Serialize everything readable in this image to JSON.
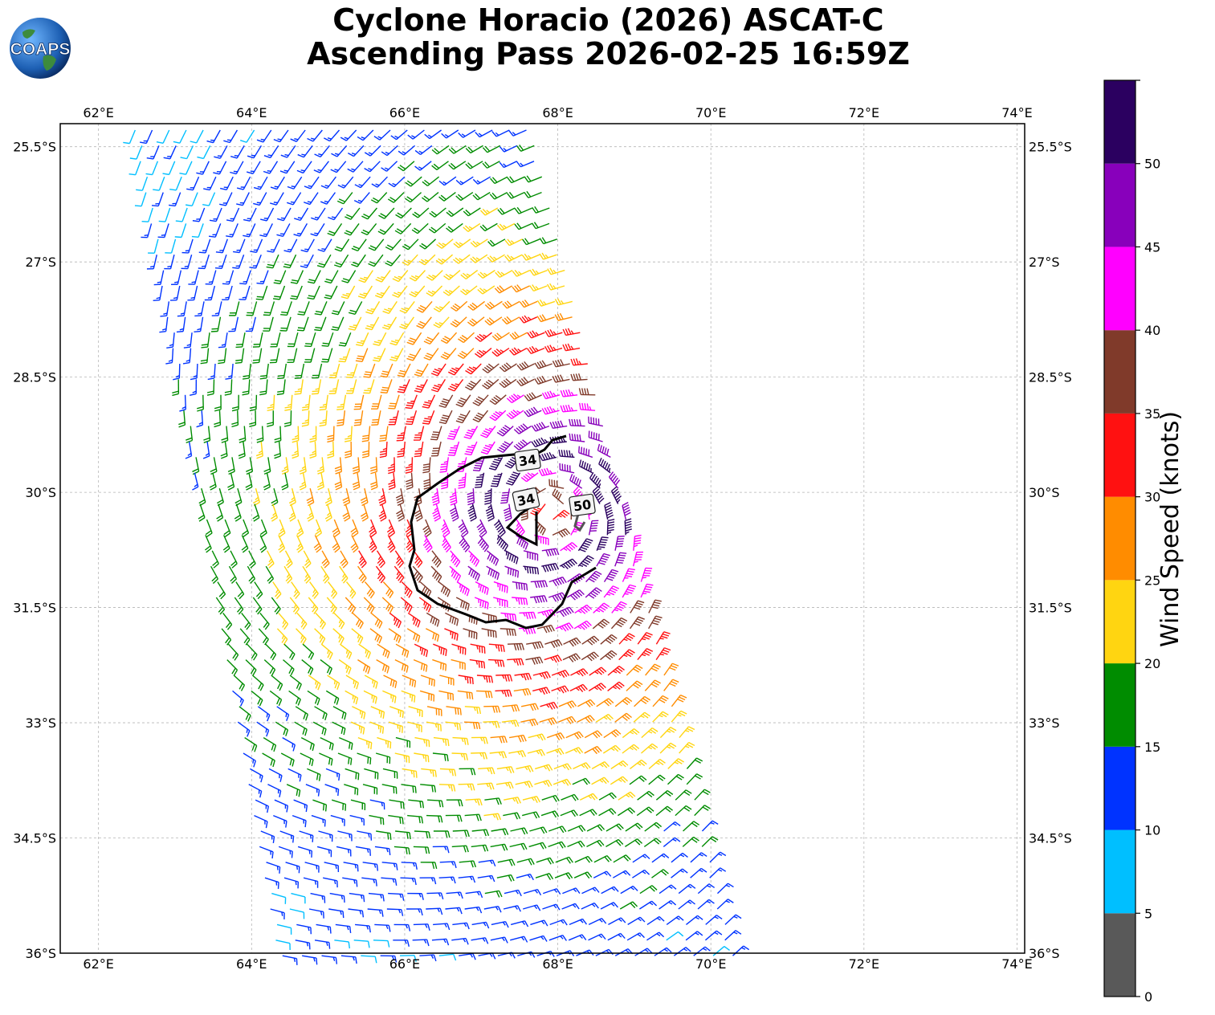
{
  "title": {
    "line1": "Cyclone Horacio (2026) ASCAT-C",
    "line2": "Ascending Pass 2026-02-25 16:59Z"
  },
  "logo": {
    "text": "COAPS",
    "icon": "globe-icon"
  },
  "map": {
    "lon_range": [
      61.5,
      74.1
    ],
    "lat_range": [
      -36.0,
      -25.2
    ],
    "lon_ticks": [
      62,
      64,
      66,
      68,
      70,
      72,
      74
    ],
    "lon_labels": [
      "62°E",
      "64°E",
      "66°E",
      "68°E",
      "70°E",
      "72°E",
      "74°E"
    ],
    "lat_ticks": [
      -25.5,
      -27,
      -28.5,
      -30,
      -31.5,
      -33,
      -34.5,
      -36
    ],
    "lat_labels": [
      "25.5°S",
      "27°S",
      "28.5°S",
      "30°S",
      "31.5°S",
      "33°S",
      "34.5°S",
      "36°S"
    ],
    "grid": true,
    "center": {
      "lon": 67.9,
      "lat": -30.25
    },
    "contours": [
      {
        "label": "34",
        "color": "#000000"
      },
      {
        "label": "34",
        "color": "#000000"
      },
      {
        "label": "50",
        "color": "#555555"
      }
    ]
  },
  "colorbar": {
    "label": "Wind Speed (knots)",
    "tick_labels": [
      "0",
      "5",
      "10",
      "15",
      "20",
      "25",
      "30",
      "35",
      "40",
      "45",
      "50"
    ],
    "max": 55,
    "bins": [
      {
        "min": 0,
        "max": 5,
        "color": "#595959"
      },
      {
        "min": 5,
        "max": 10,
        "color": "#00bfff"
      },
      {
        "min": 10,
        "max": 15,
        "color": "#0033ff"
      },
      {
        "min": 15,
        "max": 20,
        "color": "#008c00"
      },
      {
        "min": 20,
        "max": 25,
        "color": "#ffd511"
      },
      {
        "min": 25,
        "max": 30,
        "color": "#ff8c00"
      },
      {
        "min": 30,
        "max": 35,
        "color": "#ff1111"
      },
      {
        "min": 35,
        "max": 40,
        "color": "#803a2a"
      },
      {
        "min": 40,
        "max": 45,
        "color": "#ff00ff"
      },
      {
        "min": 45,
        "max": 50,
        "color": "#8800bb"
      },
      {
        "min": 50,
        "max": 55,
        "color": "#2b0060"
      }
    ]
  }
}
